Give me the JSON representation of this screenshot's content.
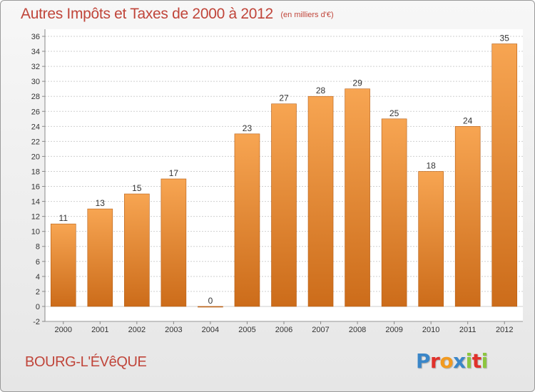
{
  "header": {
    "title": "Autres Impôts et Taxes de 2000 à 2012",
    "subtitle": "(en milliers d'€)"
  },
  "footer": {
    "commune": "BOURG-L'ÉVêQUE",
    "logo_text": "Proxiti",
    "logo_colors": [
      "#3a86c8",
      "#e0312b",
      "#f29a1f",
      "#3a86c8",
      "#8cc63f",
      "#e0312b",
      "#8cc63f"
    ]
  },
  "colors": {
    "bar_top": "#f7a552",
    "bar_bottom": "#cc6c1a",
    "bar_edge": "#b55d14",
    "grid": "#cfcfcf",
    "axis_text": "#333333"
  },
  "chart_data": {
    "type": "bar",
    "title": "Autres Impôts et Taxes de 2000 à 2012",
    "subtitle": "(en milliers d'€)",
    "xlabel": "",
    "ylabel": "",
    "categories": [
      "2000",
      "2001",
      "2002",
      "2003",
      "2004",
      "2005",
      "2006",
      "2007",
      "2008",
      "2009",
      "2010",
      "2011",
      "2012"
    ],
    "values": [
      11,
      13,
      15,
      17,
      0,
      23,
      27,
      28,
      29,
      25,
      18,
      24,
      35
    ],
    "ylim": [
      -2,
      36
    ],
    "yticks": [
      -2,
      0,
      2,
      4,
      6,
      8,
      10,
      12,
      14,
      16,
      18,
      20,
      22,
      24,
      26,
      28,
      30,
      32,
      34,
      36
    ],
    "grid": true,
    "data_labels": true
  }
}
